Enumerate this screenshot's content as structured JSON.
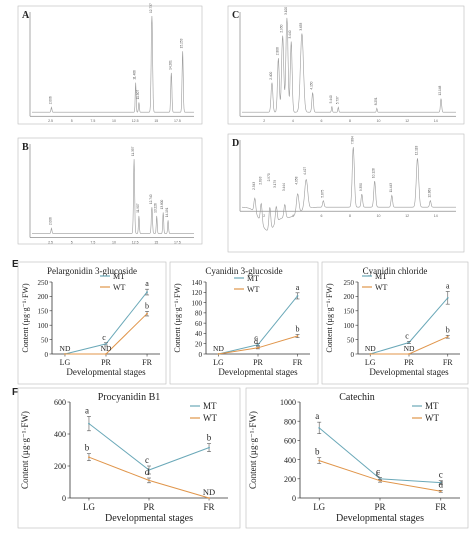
{
  "colors": {
    "mt": "#6aa8b8",
    "wt": "#e0954a",
    "trace": "#9a9a9a",
    "axis": "#555555",
    "panel_border": "#bbbbbb"
  },
  "chromatograms": [
    {
      "letter": "A",
      "peak_labels": [
        "2.006",
        "11.466",
        "11.907",
        "12.737",
        "14.261",
        "15.253"
      ],
      "y_ticks": [
        "",
        "",
        "",
        "",
        "",
        ""
      ],
      "x_ticks": [
        "2.5",
        "5",
        "7.5",
        "10",
        "12.5",
        "15",
        "17.5"
      ]
    },
    {
      "letter": "C",
      "peak_labels": [
        "2.400",
        "2.808",
        "2.950",
        "3.100",
        "3.440",
        "3.653",
        "4.150",
        "5.440",
        "5.737",
        "8.251",
        "12.148"
      ],
      "y_ticks": [],
      "x_ticks": [
        "2",
        "4",
        "6",
        "8",
        "10",
        "12",
        "14"
      ]
    },
    {
      "letter": "B",
      "peak_labels": [
        "2.006",
        "11.357",
        "11.907",
        "12.740",
        "13.226",
        "13.800",
        "14.191"
      ],
      "y_ticks": [],
      "x_ticks": [
        "2.5",
        "5",
        "7.5",
        "10",
        "12.5",
        "15",
        "17.5"
      ]
    },
    {
      "letter": "D",
      "peak_labels": [
        "2.543",
        "2.693",
        "2.970",
        "3.179",
        "3.444",
        "4.058",
        "4.427",
        "5.675",
        "7.884",
        "9.350",
        "10.128",
        "11.443",
        "12.118",
        "12.869"
      ],
      "y_ticks": [],
      "x_ticks": [
        "2",
        "4",
        "6",
        "8",
        "10",
        "12",
        "14"
      ]
    }
  ],
  "chart_data": [
    {
      "type": "line",
      "panel": "E",
      "title": "Pelargonidin 3-glucoside",
      "xlabel": "Developmental stages",
      "ylabel": "Content (µg·g⁻¹·FW)",
      "categories": [
        "LG",
        "PR",
        "FR"
      ],
      "ylim": [
        0,
        250
      ],
      "y_ticks": [
        0,
        50,
        100,
        150,
        200,
        250
      ],
      "series": [
        {
          "name": "MT",
          "values": [
            0,
            35,
            215
          ],
          "errors": [
            0,
            4,
            10
          ],
          "letters": [
            "",
            "c",
            "a"
          ]
        },
        {
          "name": "WT",
          "values": [
            0,
            0,
            140
          ],
          "errors": [
            0,
            0,
            8
          ],
          "letters": [
            "",
            "",
            "b"
          ]
        }
      ],
      "nd_labels": [
        {
          "category": "LG",
          "text": "ND"
        },
        {
          "category": "PR",
          "text": "ND"
        }
      ]
    },
    {
      "type": "line",
      "panel": "E",
      "title": "Cyanidin 3-glucoside",
      "xlabel": "Developmental stages",
      "ylabel": "Content (µg·g⁻¹·FW)",
      "categories": [
        "LG",
        "PR",
        "FR"
      ],
      "ylim": [
        0,
        140
      ],
      "y_ticks": [
        0,
        20,
        40,
        60,
        80,
        100,
        120,
        140
      ],
      "series": [
        {
          "name": "MT",
          "values": [
            0,
            18,
            113
          ],
          "errors": [
            0,
            2,
            6
          ],
          "letters": [
            "",
            "c",
            "a"
          ]
        },
        {
          "name": "WT",
          "values": [
            0,
            12,
            35
          ],
          "errors": [
            0,
            2,
            3
          ],
          "letters": [
            "",
            "d",
            "b"
          ]
        }
      ],
      "nd_labels": [
        {
          "category": "LG",
          "text": "ND"
        }
      ]
    },
    {
      "type": "line",
      "panel": "E",
      "title": "Cyanidin chloride",
      "xlabel": "Developmental stages",
      "ylabel": "Content (µg·g⁻¹·FW)",
      "categories": [
        "LG",
        "PR",
        "FR"
      ],
      "ylim": [
        0,
        250
      ],
      "y_ticks": [
        0,
        50,
        100,
        150,
        200,
        250
      ],
      "series": [
        {
          "name": "MT",
          "values": [
            0,
            40,
            195
          ],
          "errors": [
            0,
            4,
            22
          ],
          "letters": [
            "",
            "c",
            "a"
          ]
        },
        {
          "name": "WT",
          "values": [
            0,
            0,
            60
          ],
          "errors": [
            0,
            0,
            5
          ],
          "letters": [
            "",
            "",
            "b"
          ]
        }
      ],
      "nd_labels": [
        {
          "category": "LG",
          "text": "ND"
        },
        {
          "category": "PR",
          "text": "ND"
        }
      ]
    },
    {
      "type": "line",
      "panel": "F",
      "title": "Procyanidin B1",
      "xlabel": "Developmental stages",
      "ylabel": "Content (µg·g⁻¹·FW)",
      "categories": [
        "LG",
        "PR",
        "FR"
      ],
      "ylim": [
        0,
        600
      ],
      "y_ticks": [
        0,
        200,
        400,
        600
      ],
      "series": [
        {
          "name": "MT",
          "values": [
            465,
            175,
            315
          ],
          "errors": [
            45,
            25,
            25
          ],
          "letters": [
            "a",
            "c",
            "b"
          ]
        },
        {
          "name": "WT",
          "values": [
            255,
            110,
            0
          ],
          "errors": [
            22,
            15,
            0
          ],
          "letters": [
            "b",
            "d",
            ""
          ]
        }
      ],
      "nd_labels": [
        {
          "category": "FR",
          "text": "ND"
        }
      ]
    },
    {
      "type": "line",
      "panel": "F",
      "title": "Catechin",
      "xlabel": "Developmental stages",
      "ylabel": "Content (µg·g⁻¹·FW)",
      "categories": [
        "LG",
        "PR",
        "FR"
      ],
      "ylim": [
        0,
        1000
      ],
      "y_ticks": [
        0,
        200,
        400,
        600,
        800,
        1000
      ],
      "series": [
        {
          "name": "MT",
          "values": [
            730,
            200,
            160
          ],
          "errors": [
            60,
            15,
            20
          ],
          "letters": [
            "a",
            "c",
            "c"
          ]
        },
        {
          "name": "WT",
          "values": [
            390,
            180,
            70
          ],
          "errors": [
            30,
            15,
            10
          ],
          "letters": [
            "b",
            "c",
            "d"
          ]
        }
      ],
      "nd_labels": []
    }
  ]
}
